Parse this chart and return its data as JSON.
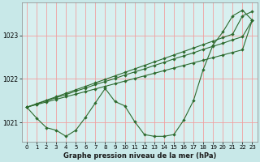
{
  "background_color": "#c8e8e8",
  "plot_bg_color": "#d8f0f0",
  "grid_color": "#f0a0a0",
  "line_color": "#2d6a2d",
  "xlabel": "Graphe pression niveau de la mer (hPa)",
  "ylim": [
    1020.55,
    1023.75
  ],
  "xlim": [
    -0.5,
    23.5
  ],
  "yticks": [
    1021,
    1022,
    1023
  ],
  "xticks": [
    0,
    1,
    2,
    3,
    4,
    5,
    6,
    7,
    8,
    9,
    10,
    11,
    12,
    13,
    14,
    15,
    16,
    17,
    18,
    19,
    20,
    21,
    22,
    23
  ],
  "series": {
    "curve1": [
      1021.35,
      1021.1,
      1020.88,
      1020.82,
      1020.68,
      1020.82,
      1021.12,
      1021.45,
      1021.78,
      1021.48,
      1021.38,
      1021.02,
      1020.72,
      1020.68,
      1020.68,
      1020.72,
      1021.05,
      1021.5,
      1022.22,
      1022.78,
      1023.08,
      1023.45,
      1023.58,
      1023.35
    ],
    "line1": [
      1021.35,
      1021.42,
      1021.5,
      1021.57,
      1021.64,
      1021.72,
      1021.79,
      1021.87,
      1021.94,
      1022.01,
      1022.09,
      1022.16,
      1022.23,
      1022.31,
      1022.38,
      1022.46,
      1022.53,
      1022.6,
      1022.68,
      1022.75,
      1022.82,
      1022.9,
      1022.97,
      1023.35
    ],
    "line2": [
      1021.35,
      1021.43,
      1021.51,
      1021.59,
      1021.67,
      1021.75,
      1021.83,
      1021.91,
      1021.99,
      1022.07,
      1022.15,
      1022.23,
      1022.31,
      1022.39,
      1022.47,
      1022.55,
      1022.63,
      1022.71,
      1022.79,
      1022.87,
      1022.95,
      1023.03,
      1023.45,
      1023.55
    ],
    "line3": [
      1021.35,
      1021.41,
      1021.47,
      1021.53,
      1021.59,
      1021.65,
      1021.71,
      1021.77,
      1021.83,
      1021.89,
      1021.95,
      1022.01,
      1022.07,
      1022.13,
      1022.19,
      1022.25,
      1022.31,
      1022.37,
      1022.43,
      1022.49,
      1022.55,
      1022.61,
      1022.67,
      1023.35
    ]
  }
}
